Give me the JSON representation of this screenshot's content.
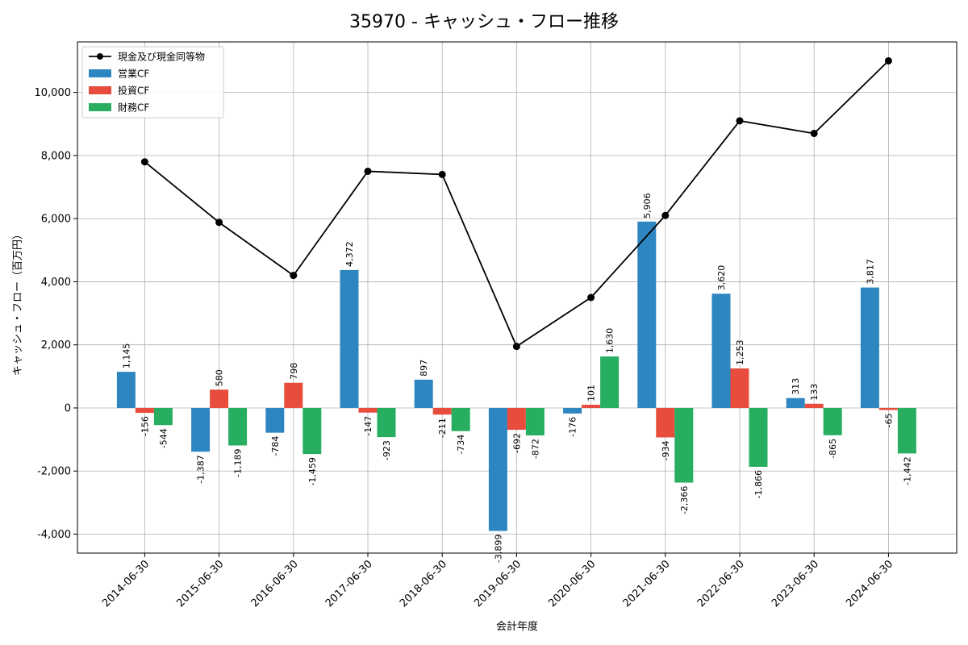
{
  "chart_data": {
    "type": "bar",
    "title": "35970 - キャッシュ・フロー推移",
    "xlabel": "会計年度",
    "ylabel": "キャッシュ・フロー（百万円）",
    "categories": [
      "2014-06-30",
      "2015-06-30",
      "2016-06-30",
      "2017-06-30",
      "2018-06-30",
      "2019-06-30",
      "2020-06-30",
      "2021-06-30",
      "2022-06-30",
      "2023-06-30",
      "2024-06-30"
    ],
    "ylim": [
      -4600,
      11600
    ],
    "yticks": [
      -4000,
      -2000,
      0,
      2000,
      4000,
      6000,
      8000,
      10000
    ],
    "ytick_labels": [
      "-4,000",
      "-2,000",
      "0",
      "2,000",
      "4,000",
      "6,000",
      "8,000",
      "10,000"
    ],
    "grid": true,
    "legend_position": "top-left",
    "series": [
      {
        "name": "営業CF",
        "kind": "bar",
        "color": "#2e86c1",
        "values": [
          1145,
          -1387,
          -784,
          4372,
          897,
          -3899,
          -176,
          5906,
          3620,
          313,
          3817
        ],
        "labels": [
          "1,145",
          "-1,387",
          "-784",
          "4,372",
          "897",
          "-3,899",
          "-176",
          "5,906",
          "3,620",
          "313",
          "3,817"
        ]
      },
      {
        "name": "投資CF",
        "kind": "bar",
        "color": "#e74c3c",
        "values": [
          -156,
          580,
          798,
          -147,
          -211,
          -692,
          101,
          -934,
          1253,
          133,
          -65
        ],
        "labels": [
          "-156",
          "580",
          "798",
          "-147",
          "-211",
          "-692",
          "101",
          "-934",
          "1,253",
          "133",
          "-65"
        ]
      },
      {
        "name": "財務CF",
        "kind": "bar",
        "color": "#27ae60",
        "values": [
          -544,
          -1189,
          -1459,
          -923,
          -734,
          -872,
          1630,
          -2366,
          -1866,
          -865,
          -1442
        ],
        "labels": [
          "-544",
          "-1,189",
          "-1,459",
          "-923",
          "-734",
          "-872",
          "1,630",
          "-2,366",
          "-1,866",
          "-865",
          "-1,442"
        ]
      },
      {
        "name": "現金及び現金同等物",
        "kind": "line",
        "color": "#000000",
        "values": [
          7800,
          5880,
          4200,
          7500,
          7400,
          1950,
          3500,
          6100,
          9100,
          8700,
          11000
        ]
      }
    ]
  }
}
